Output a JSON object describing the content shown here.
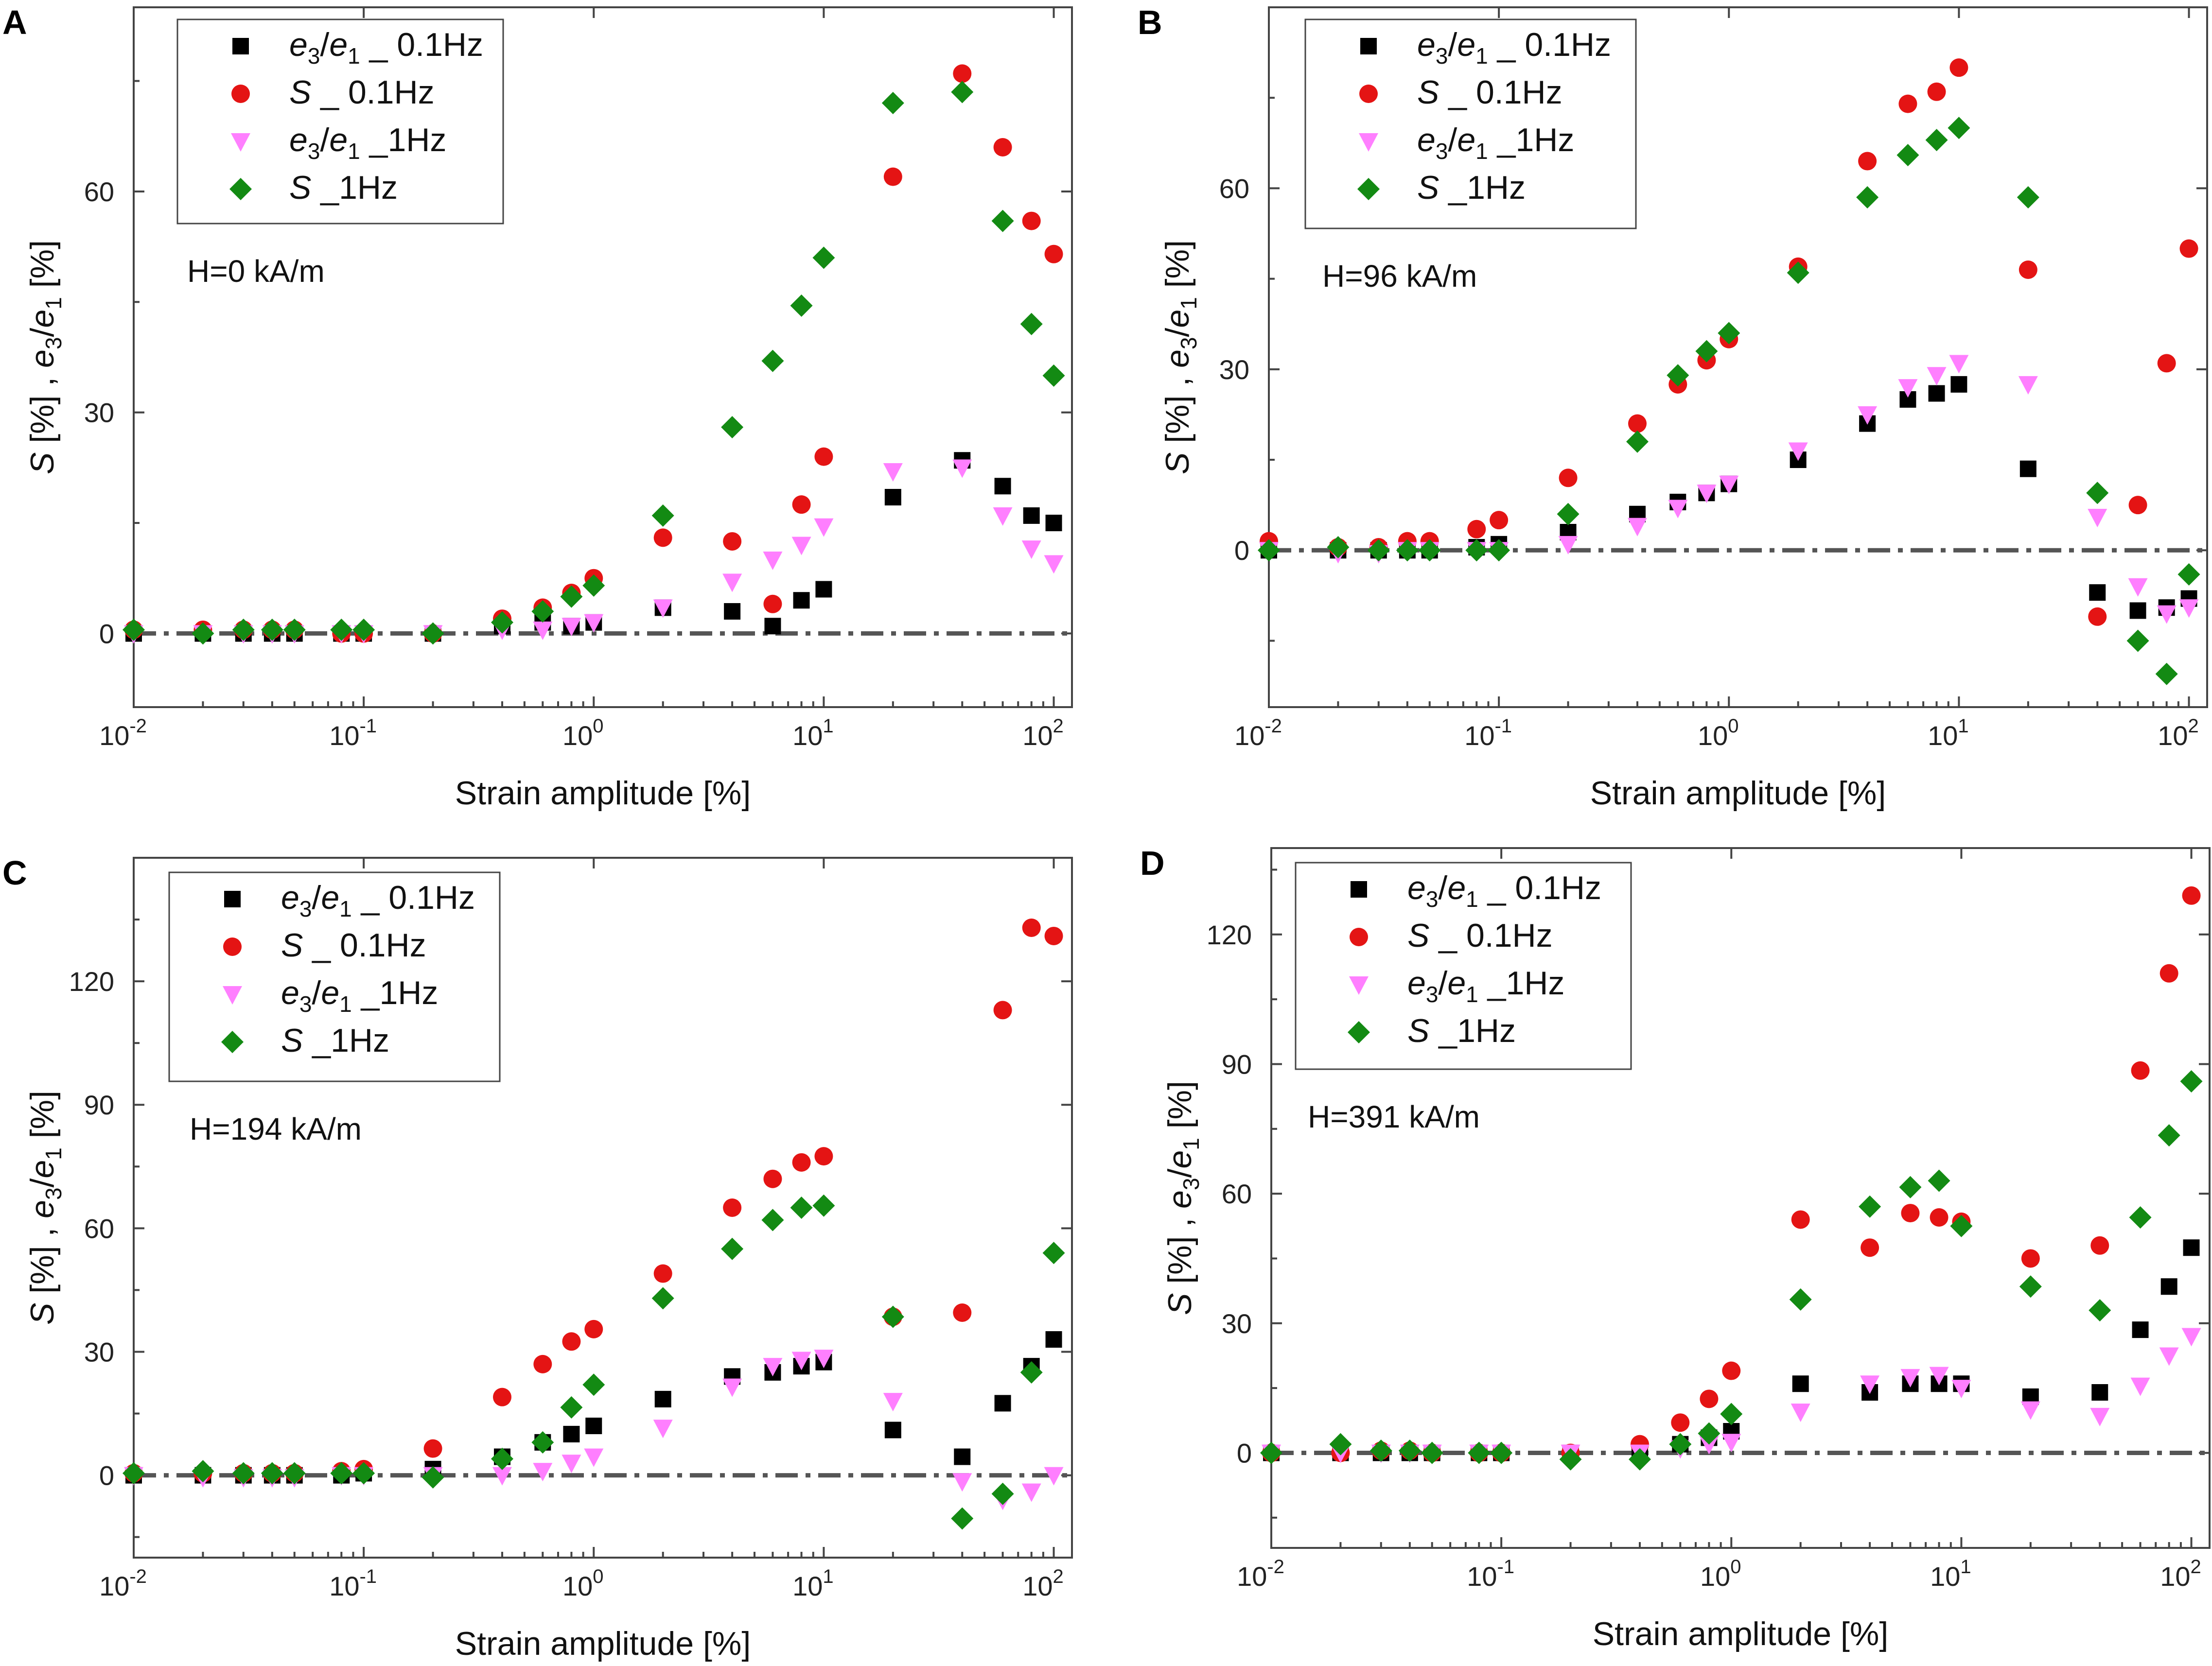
{
  "figure": {
    "colors": {
      "e3e1_0.1Hz": "#000000",
      "S_0.1Hz": "#e41414",
      "e3e1_1Hz": "#ff7fff",
      "S_1Hz": "#138a13",
      "zero_line": "#555555"
    },
    "legend_entries": [
      {
        "key": "e3e1_0.1Hz",
        "marker": "square",
        "symbol": "e",
        "sub1": "3",
        "slash": "/",
        "symbol2": "e",
        "sub2": "1",
        "suffix": " _ 0.1Hz"
      },
      {
        "key": "S_0.1Hz",
        "marker": "circle",
        "symbol": "S",
        "suffix": " _ 0.1Hz"
      },
      {
        "key": "e3e1_1Hz",
        "marker": "triangle-down",
        "symbol": "e",
        "sub1": "3",
        "slash": "/",
        "symbol2": "e",
        "sub2": "1",
        "suffix": " _1Hz"
      },
      {
        "key": "S_1Hz",
        "marker": "diamond",
        "symbol": "S",
        "suffix": " _1Hz"
      }
    ],
    "ylabel": {
      "symbol": "S",
      "unit": " [%] , ",
      "symbol2": "e",
      "sub1": "3",
      "slash": "/",
      "symbol3": "e",
      "sub2": "1",
      "unit2": " [%]"
    },
    "xlabel": "Strain amplitude [%]",
    "x_tick_labels": [
      {
        "base": "10",
        "exp": "-2"
      },
      {
        "base": "10",
        "exp": "-1"
      },
      {
        "base": "10",
        "exp": "0"
      },
      {
        "base": "10",
        "exp": "1"
      },
      {
        "base": "10",
        "exp": "2"
      }
    ]
  },
  "chart_data": [
    {
      "panel": "A",
      "type": "scatter",
      "x_scale": "log",
      "xlim": [
        0.01,
        120
      ],
      "ylim": [
        -10,
        85
      ],
      "yticks": [
        0,
        30,
        60
      ],
      "annotation": "H=0 kA/m",
      "xlabel": "Strain amplitude [%]",
      "series": [
        {
          "name": "e3/e1 _ 0.1Hz",
          "x": [
            0.01,
            0.02,
            0.03,
            0.04,
            0.05,
            0.08,
            0.1,
            0.2,
            0.4,
            0.6,
            0.8,
            1,
            2,
            4,
            6,
            8,
            10,
            20,
            40,
            60,
            80,
            100
          ],
          "values": [
            0,
            0,
            0,
            0,
            0,
            0,
            0,
            0,
            1,
            1.5,
            1,
            1.5,
            3.5,
            3,
            1,
            4.5,
            6,
            18.5,
            23.5,
            20,
            16,
            15
          ]
        },
        {
          "name": "S _ 0.1Hz",
          "x": [
            0.01,
            0.02,
            0.03,
            0.04,
            0.05,
            0.08,
            0.1,
            0.2,
            0.4,
            0.6,
            0.8,
            1,
            2,
            4,
            6,
            8,
            10,
            20,
            40,
            60,
            80,
            100
          ],
          "values": [
            0.5,
            0.5,
            0.5,
            0.5,
            0.5,
            0,
            0,
            0,
            2,
            3.5,
            5.5,
            7.5,
            13,
            12.5,
            4,
            17.5,
            24,
            62,
            76,
            66,
            56,
            51.5
          ]
        },
        {
          "name": "e3/e1 _1Hz",
          "x": [
            0.01,
            0.02,
            0.03,
            0.04,
            0.05,
            0.08,
            0.1,
            0.2,
            0.4,
            0.6,
            0.8,
            1,
            2,
            4,
            6,
            8,
            10,
            20,
            40,
            60,
            80,
            100
          ],
          "values": [
            0,
            0,
            0,
            0,
            0,
            0,
            0,
            0,
            0.5,
            0.5,
            1,
            1.5,
            3.5,
            7,
            10,
            12,
            14.5,
            22,
            22.5,
            16,
            11.5,
            9.5
          ]
        },
        {
          "name": "S _1Hz",
          "x": [
            0.01,
            0.02,
            0.03,
            0.04,
            0.05,
            0.08,
            0.1,
            0.2,
            0.4,
            0.6,
            0.8,
            1,
            2,
            4,
            6,
            8,
            10,
            20,
            40,
            60,
            80,
            100
          ],
          "values": [
            0.5,
            0,
            0.5,
            0.5,
            0.5,
            0.5,
            0.5,
            0,
            1.5,
            3,
            5,
            6.5,
            16,
            28,
            37,
            44.5,
            51,
            72,
            73.5,
            56,
            42,
            35
          ]
        }
      ]
    },
    {
      "panel": "B",
      "type": "scatter",
      "x_scale": "log",
      "xlim": [
        0.01,
        120
      ],
      "ylim": [
        -26,
        90
      ],
      "yticks": [
        0,
        30,
        60
      ],
      "annotation": "H=96 kA/m",
      "xlabel": "Strain amplitude [%]",
      "series": [
        {
          "name": "e3/e1 _ 0.1Hz",
          "x": [
            0.01,
            0.02,
            0.03,
            0.04,
            0.05,
            0.08,
            0.1,
            0.2,
            0.4,
            0.6,
            0.8,
            1,
            2,
            4,
            6,
            8,
            10,
            20,
            40,
            60,
            80,
            100
          ],
          "values": [
            0,
            0,
            0,
            0,
            0,
            0.5,
            1,
            3,
            6,
            8,
            9.5,
            11,
            15,
            21,
            25,
            26,
            27.5,
            13.5,
            -7,
            -10,
            -9.5,
            -8
          ]
        },
        {
          "name": "S _ 0.1Hz",
          "x": [
            0.01,
            0.02,
            0.03,
            0.04,
            0.05,
            0.08,
            0.1,
            0.2,
            0.4,
            0.6,
            0.8,
            1,
            2,
            4,
            6,
            8,
            10,
            20,
            40,
            60,
            80,
            100
          ],
          "values": [
            1.5,
            0.5,
            0.5,
            1.5,
            1.5,
            3.5,
            5,
            12,
            21,
            27.5,
            31.5,
            35,
            47,
            64.5,
            74,
            76,
            80,
            46.5,
            -11,
            7.5,
            31,
            50
          ]
        },
        {
          "name": "e3/e1 _1Hz",
          "x": [
            0.01,
            0.02,
            0.03,
            0.04,
            0.05,
            0.08,
            0.1,
            0.2,
            0.4,
            0.6,
            0.8,
            1,
            2,
            4,
            6,
            8,
            10,
            20,
            40,
            60,
            80,
            100
          ],
          "values": [
            0,
            -0.5,
            -0.5,
            0,
            0,
            0,
            0,
            1,
            4,
            7,
            9.5,
            11,
            16.5,
            22.5,
            27,
            29,
            31,
            27.5,
            5.5,
            -6,
            -10.5,
            -9.5
          ]
        },
        {
          "name": "S _1Hz",
          "x": [
            0.01,
            0.02,
            0.03,
            0.04,
            0.05,
            0.08,
            0.1,
            0.2,
            0.4,
            0.6,
            0.8,
            1,
            2,
            4,
            6,
            8,
            10,
            20,
            40,
            60,
            80,
            100
          ],
          "values": [
            0,
            0.5,
            0,
            0,
            0,
            0,
            0,
            6,
            18,
            29,
            33,
            36,
            46,
            58.5,
            65.5,
            68,
            70,
            58.5,
            9.5,
            -15,
            -20.5,
            -4
          ]
        }
      ]
    },
    {
      "panel": "C",
      "type": "scatter",
      "x_scale": "log",
      "xlim": [
        0.01,
        120
      ],
      "ylim": [
        -20,
        150
      ],
      "yticks": [
        0,
        30,
        60,
        90,
        120
      ],
      "annotation": "H=194 kA/m",
      "xlabel": "Strain amplitude [%]",
      "series": [
        {
          "name": "e3/e1 _ 0.1Hz",
          "x": [
            0.01,
            0.02,
            0.03,
            0.04,
            0.05,
            0.08,
            0.1,
            0.2,
            0.4,
            0.6,
            0.8,
            1,
            2,
            4,
            6,
            8,
            10,
            20,
            40,
            60,
            80,
            100
          ],
          "values": [
            0,
            0,
            0,
            0,
            0,
            0,
            0.5,
            1.5,
            4.5,
            8,
            10,
            12,
            18.5,
            24,
            25,
            26.5,
            27.5,
            11,
            4.5,
            17.5,
            26.5,
            33
          ]
        },
        {
          "name": "S _ 0.1Hz",
          "x": [
            0.01,
            0.02,
            0.03,
            0.04,
            0.05,
            0.08,
            0.1,
            0.2,
            0.4,
            0.6,
            0.8,
            1,
            2,
            4,
            6,
            8,
            10,
            20,
            40,
            60,
            80,
            100
          ],
          "values": [
            0.5,
            0.5,
            0.5,
            0.5,
            0.5,
            1,
            1.5,
            6.5,
            19,
            27,
            32.5,
            35.5,
            49,
            65,
            72,
            76,
            77.5,
            38.5,
            39.5,
            113,
            133,
            131
          ]
        },
        {
          "name": "e3/e1 _1Hz",
          "x": [
            0.01,
            0.02,
            0.03,
            0.04,
            0.05,
            0.08,
            0.1,
            0.2,
            0.4,
            0.6,
            0.8,
            1,
            2,
            4,
            6,
            8,
            10,
            20,
            40,
            60,
            80,
            100
          ],
          "values": [
            0,
            -0.5,
            -0.5,
            -0.5,
            -0.5,
            0,
            0,
            0,
            0,
            1,
            3,
            4.5,
            11.5,
            21.5,
            26.5,
            28,
            28.5,
            18,
            -1.5,
            -6,
            -4,
            0
          ]
        },
        {
          "name": "S _1Hz",
          "x": [
            0.01,
            0.02,
            0.03,
            0.04,
            0.05,
            0.08,
            0.1,
            0.2,
            0.4,
            0.6,
            0.8,
            1,
            2,
            4,
            6,
            8,
            10,
            20,
            40,
            60,
            80,
            100
          ],
          "values": [
            0.5,
            1,
            0.5,
            0.5,
            0.5,
            0.5,
            0.5,
            -0.5,
            4,
            8,
            16.5,
            22,
            43,
            55,
            62,
            65,
            65.5,
            38.5,
            -10.5,
            -4.5,
            25,
            54
          ]
        }
      ]
    },
    {
      "panel": "D",
      "type": "scatter",
      "x_scale": "log",
      "xlim": [
        0.01,
        120
      ],
      "ylim": [
        -22,
        140
      ],
      "yticks": [
        0,
        30,
        60,
        90,
        120
      ],
      "annotation": "H=391 kA/m",
      "xlabel": "Strain amplitude [%]",
      "series": [
        {
          "name": "e3/e1 _ 0.1Hz",
          "x": [
            0.01,
            0.02,
            0.03,
            0.04,
            0.05,
            0.08,
            0.1,
            0.2,
            0.4,
            0.6,
            0.8,
            1,
            2,
            4,
            6,
            8,
            10,
            20,
            40,
            60,
            80,
            100
          ],
          "values": [
            0,
            0,
            0,
            0,
            0,
            0,
            0,
            0,
            0.5,
            2,
            3.5,
            5,
            16,
            14,
            16,
            16,
            16,
            13,
            14,
            28.5,
            38.5,
            47.5
          ]
        },
        {
          "name": "S _ 0.1Hz",
          "x": [
            0.01,
            0.02,
            0.03,
            0.04,
            0.05,
            0.08,
            0.1,
            0.2,
            0.4,
            0.6,
            0.8,
            1,
            2,
            4,
            6,
            8,
            10,
            20,
            40,
            60,
            80,
            100
          ],
          "values": [
            0,
            0,
            0.5,
            0.5,
            0,
            0,
            0,
            0,
            2,
            7,
            12.5,
            19,
            54,
            47.5,
            55.5,
            54.5,
            53.5,
            45,
            48,
            88.5,
            111,
            129
          ]
        },
        {
          "name": "e3/e1 _1Hz",
          "x": [
            0.01,
            0.02,
            0.03,
            0.04,
            0.05,
            0.08,
            0.1,
            0.2,
            0.4,
            0.6,
            0.8,
            1,
            2,
            4,
            6,
            8,
            10,
            20,
            40,
            60,
            80,
            100
          ],
          "values": [
            0,
            0,
            0,
            0,
            0,
            0,
            0,
            0,
            0,
            1,
            2,
            2.5,
            9.5,
            16,
            17.5,
            18,
            15,
            10,
            8.5,
            15.5,
            22.5,
            27
          ]
        },
        {
          "name": "S _1Hz",
          "x": [
            0.01,
            0.02,
            0.03,
            0.04,
            0.05,
            0.08,
            0.1,
            0.2,
            0.4,
            0.6,
            0.8,
            1,
            2,
            4,
            6,
            8,
            10,
            20,
            40,
            60,
            80,
            100
          ],
          "values": [
            0,
            2,
            0.5,
            0.5,
            0,
            0,
            0,
            -1.5,
            -1.5,
            2,
            4.5,
            9,
            35.5,
            57,
            61.5,
            63,
            52.5,
            38.5,
            33,
            54.5,
            73.5,
            86
          ]
        }
      ]
    }
  ]
}
